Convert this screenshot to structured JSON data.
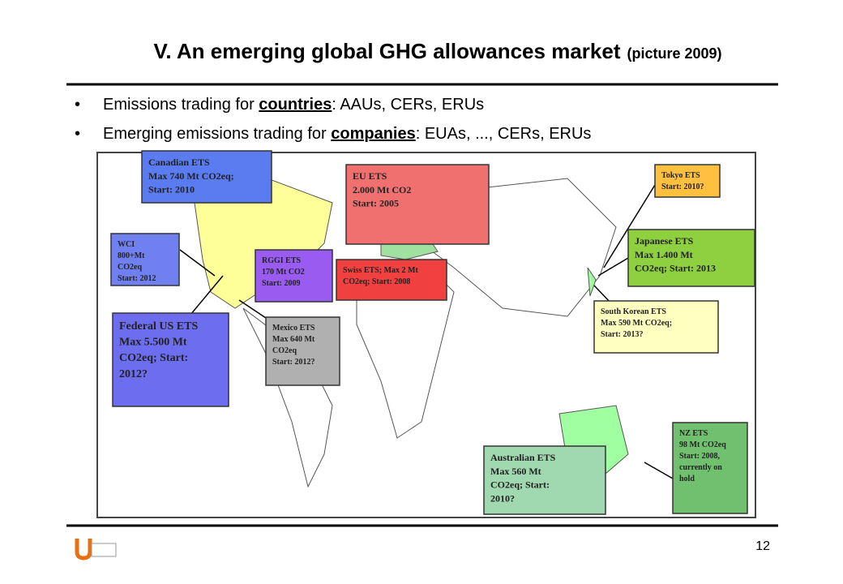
{
  "header": {
    "title": "V. An emerging global GHG allowances market",
    "subtitle": "(picture 2009)"
  },
  "bullets": [
    {
      "before": "Emissions trading for ",
      "underlined": "countries",
      "after": ": AAUs, CERs, ERUs"
    },
    {
      "before": "Emerging emissions trading for ",
      "underlined": "companies",
      "after": ": EUAs, ..., CERs, ERUs"
    }
  ],
  "map": {
    "boxes": [
      {
        "lines": [
          "Canadian ETS",
          "Max 740 Mt CO2eq;",
          "Start: 2010"
        ]
      },
      {
        "lines": [
          "EU ETS",
          "2.000 Mt CO2",
          "Start: 2005"
        ]
      },
      {
        "lines": [
          "Tokyo ETS",
          "Start: 2010?"
        ]
      },
      {
        "lines": [
          "WCI",
          "800+Mt",
          "CO2eq",
          "Start: 2012"
        ]
      },
      {
        "lines": [
          "RGGI ETS",
          "170 Mt CO2",
          "Start:  2009"
        ]
      },
      {
        "lines": [
          "Swiss ETS; Max 2 Mt",
          "CO2eq; Start: 2008"
        ]
      },
      {
        "lines": [
          "Japanese ETS",
          "Max 1.400 Mt",
          "CO2eq; Start: 2013"
        ]
      },
      {
        "lines": [
          "Federal US ETS",
          "Max 5.500 Mt",
          "CO2eq; Start:",
          "2012?"
        ]
      },
      {
        "lines": [
          "Mexico ETS",
          "Max 640 Mt",
          "CO2eq",
          "Start: 2012?"
        ]
      },
      {
        "lines": [
          "South Korean ETS",
          "Max 590 Mt CO2eq;",
          "Start: 2013?"
        ]
      },
      {
        "lines": [
          "Australian ETS",
          "Max 560 Mt",
          "CO2eq; Start:",
          "2010?"
        ]
      },
      {
        "lines": [
          "NZ ETS",
          "98 Mt CO2eq",
          "Start: 2008,",
          "currently on",
          "hold"
        ]
      }
    ]
  },
  "footer": {
    "page_number": "12"
  }
}
